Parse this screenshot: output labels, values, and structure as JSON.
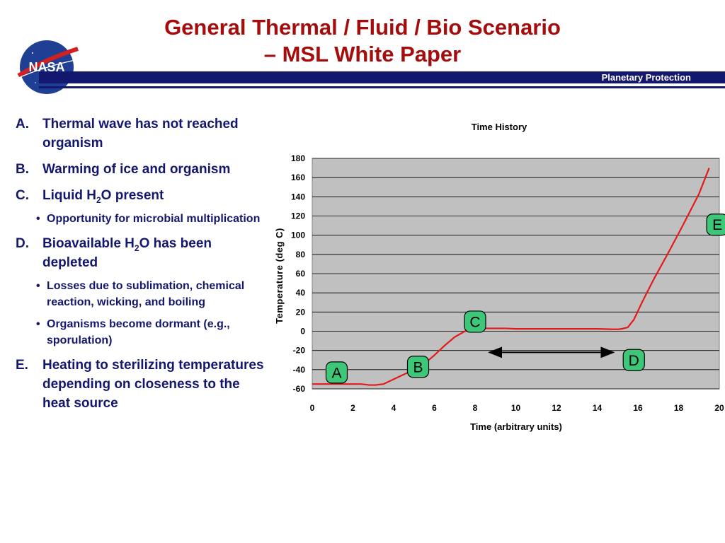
{
  "header": {
    "title_line1": "General Thermal / Fluid / Bio Scenario",
    "title_line2": "– MSL White Paper",
    "band_label": "Planetary Protection",
    "logo_text": "NASA"
  },
  "bullets": {
    "a_mark": "A.",
    "a_text": "Thermal wave has not reached organism",
    "b_mark": "B.",
    "b_text": "Warming of ice and organism",
    "c_mark": "C.",
    "c_pre": "Liquid H",
    "c_sub": "2",
    "c_post": "O present",
    "c_sub1": "Opportunity for microbial multiplication",
    "d_mark": "D.",
    "d_pre": "Bioavailable H",
    "d_sub": "2",
    "d_post": "O has been depleted",
    "d_sub1": "Losses due to sublimation, chemical reaction, wicking, and boiling",
    "d_sub2": "Organisms become dormant (e.g., sporulation)",
    "e_mark": "E.",
    "e_text": "Heating to sterilizing temperatures depending on closeness to the heat source",
    "bullet_symbol": "•"
  },
  "chart_data": {
    "type": "line",
    "title": "Time History",
    "xlabel": "Time (arbitrary units)",
    "ylabel": "Temperature (deg C)",
    "xlim": [
      0,
      20
    ],
    "ylim": [
      -60,
      180
    ],
    "xticks": [
      0,
      2,
      4,
      6,
      8,
      10,
      12,
      14,
      16,
      18,
      20
    ],
    "yticks": [
      -60,
      -40,
      -20,
      0,
      20,
      40,
      60,
      80,
      100,
      120,
      140,
      160,
      180
    ],
    "grid": true,
    "line_color": "#e31a1c",
    "plot_background": "#c0c0c0",
    "series": [
      {
        "x": [
          0,
          1,
          2,
          2.4,
          2.8,
          3.1,
          3.5,
          4.0,
          4.5,
          5.0,
          5.5,
          6.0,
          6.5,
          7.0,
          7.5,
          8.0,
          8.5,
          9.0,
          9.5,
          10,
          12,
          14,
          14.8,
          15.0,
          15.2,
          15.5,
          15.8,
          16.2,
          16.8,
          17.5,
          18.2,
          19.0,
          19.5
        ],
        "y": [
          -55,
          -55,
          -55,
          -55,
          -56,
          -56,
          -55,
          -50,
          -45,
          -40,
          -34,
          -25,
          -15,
          -6,
          0,
          2,
          3,
          3,
          3,
          2.5,
          2.5,
          2.5,
          2,
          2,
          2.5,
          4,
          12,
          30,
          55,
          82,
          110,
          143,
          170
        ]
      }
    ],
    "callouts": [
      {
        "label": "A",
        "x": 1.2,
        "y": -43
      },
      {
        "label": "B",
        "x": 5.2,
        "y": -37
      },
      {
        "label": "C",
        "x": 8.0,
        "y": 10
      },
      {
        "label": "D",
        "x": 15.8,
        "y": -30
      },
      {
        "label": "E",
        "x": 19.9,
        "y": 111
      }
    ],
    "arrow": {
      "x_start": 8.7,
      "x_end": 14.8,
      "y": -22
    }
  }
}
